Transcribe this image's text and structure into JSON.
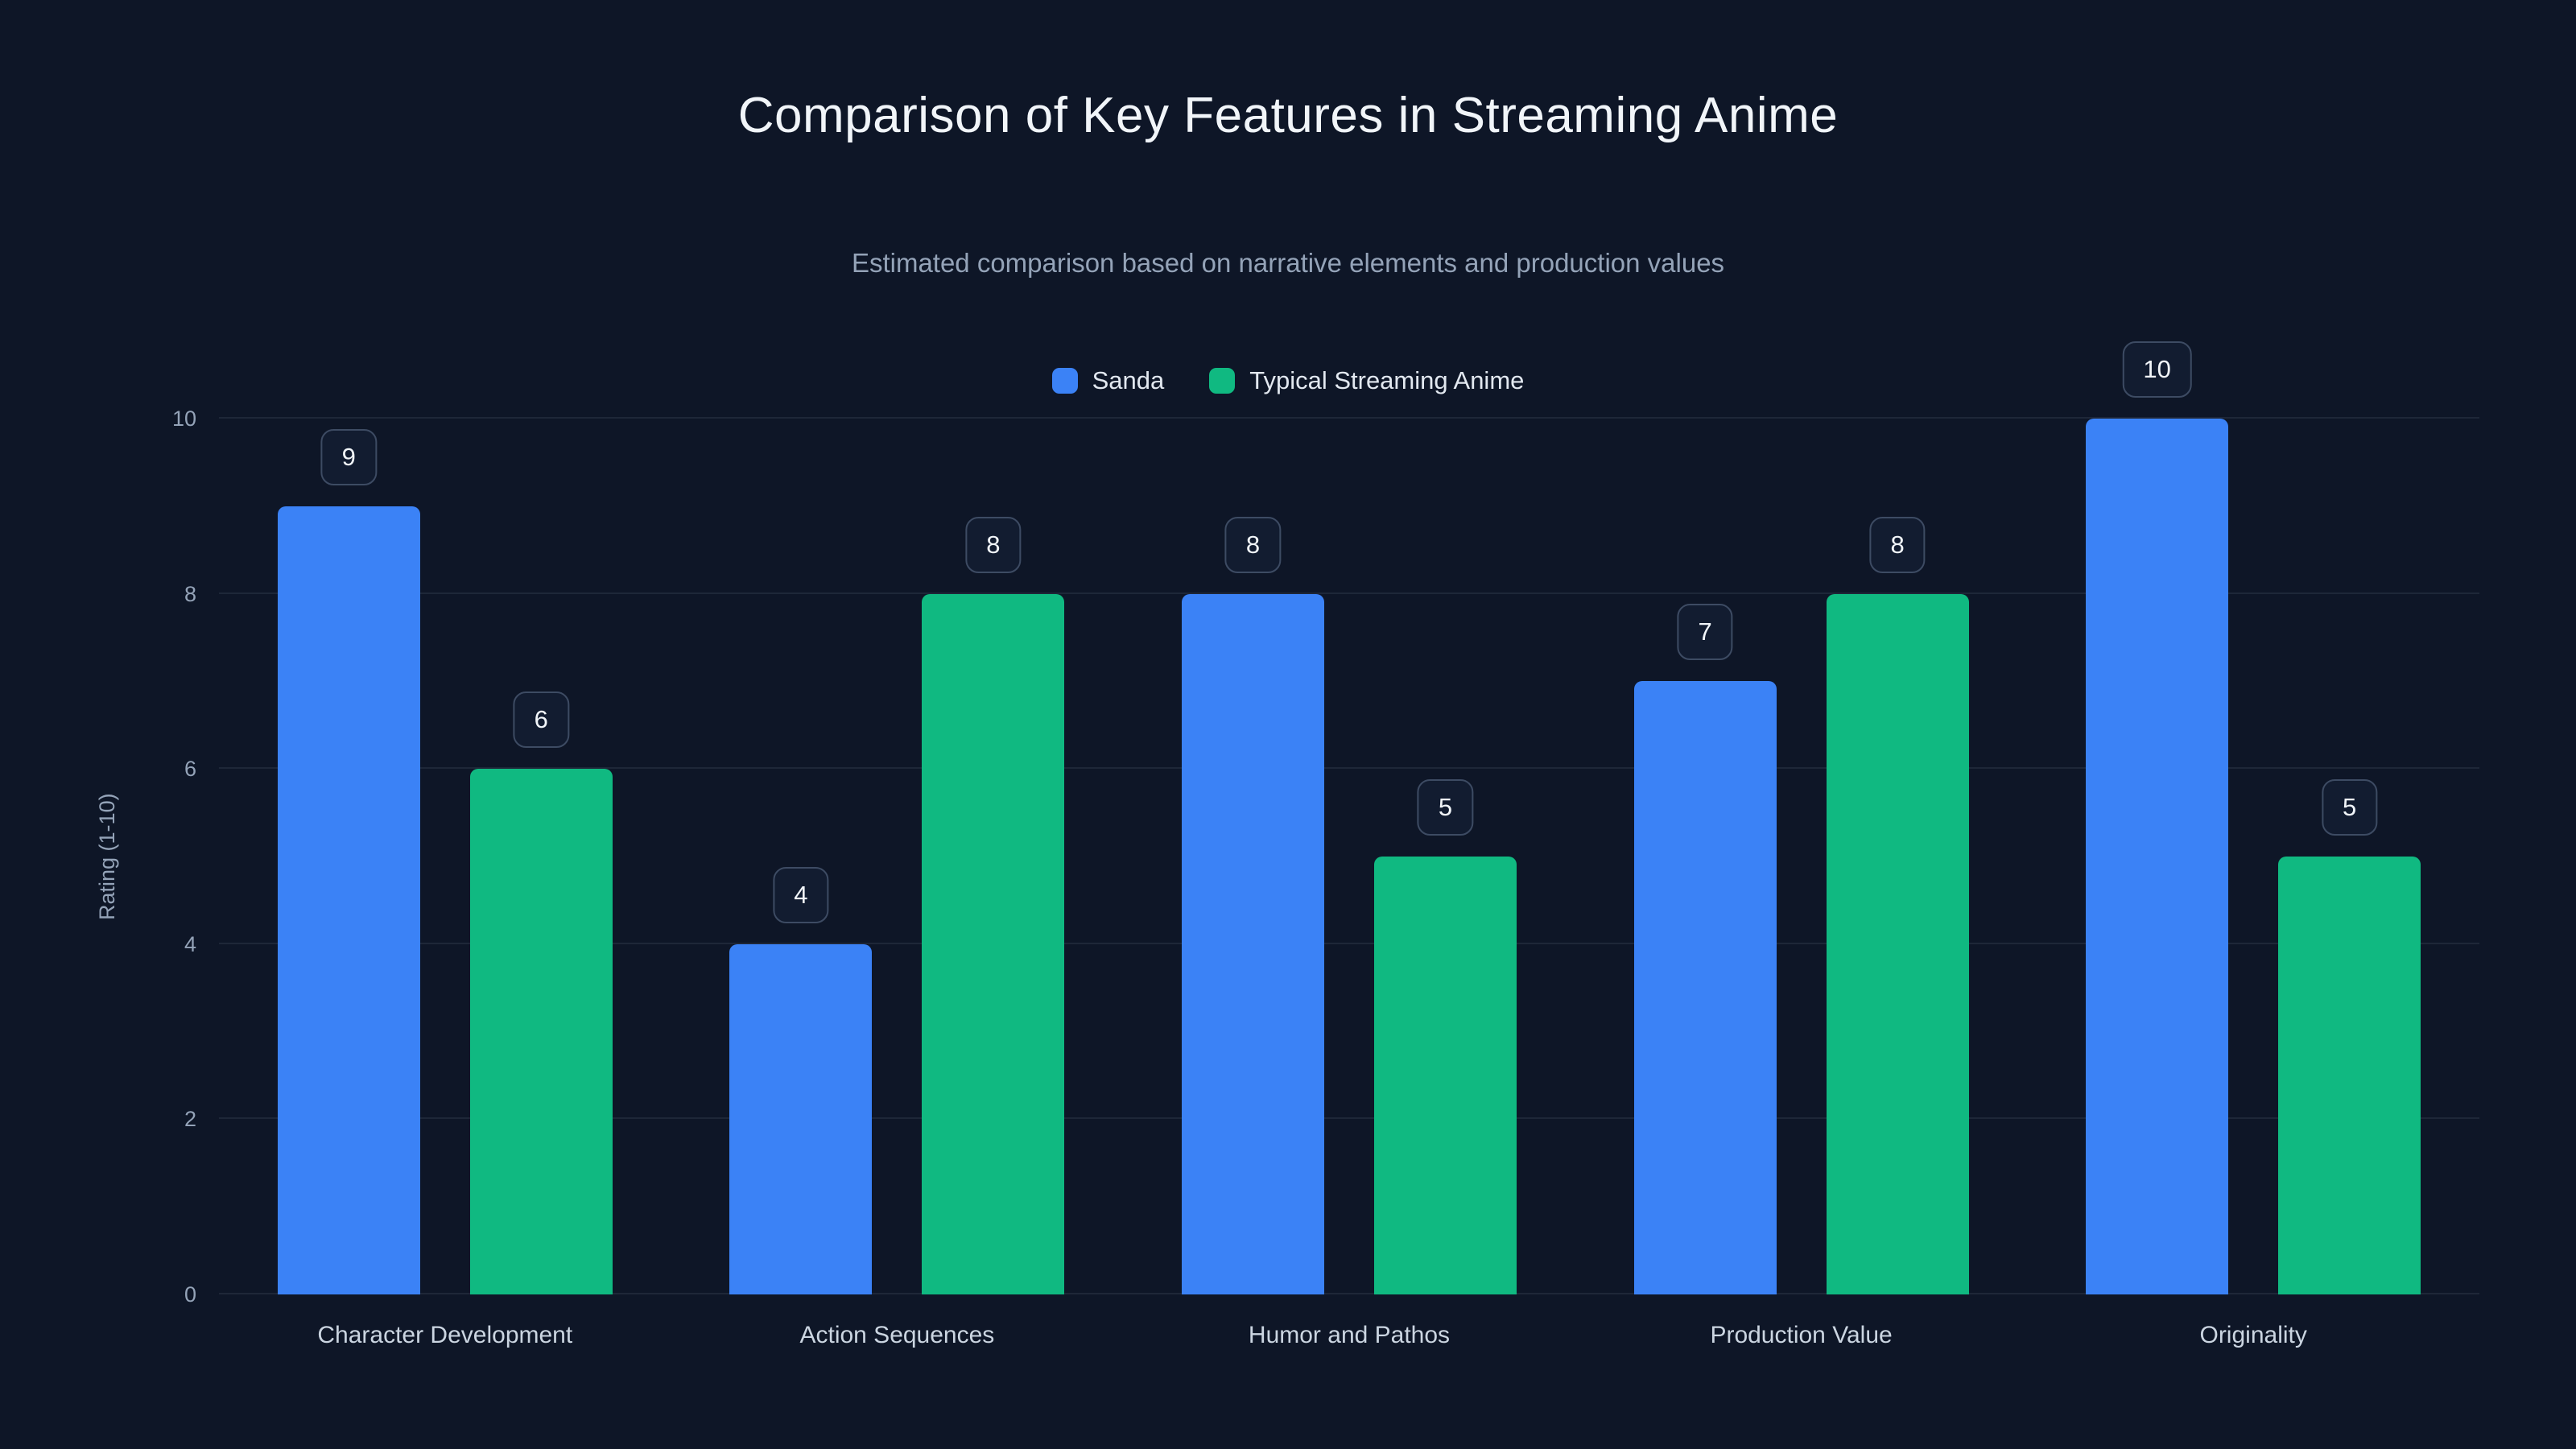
{
  "page": {
    "background": "#0e1627"
  },
  "header": {
    "title": "Comparison of Key Features in Streaming Anime",
    "subtitle": "Estimated comparison based on narrative elements and production values"
  },
  "chart_data": {
    "type": "bar",
    "title": "Comparison of Key Features in Streaming Anime",
    "subtitle": "Estimated comparison based on narrative elements and production values",
    "ylabel": "Rating (1-10)",
    "xlabel": "",
    "ylim": [
      0,
      10
    ],
    "yticks": [
      0,
      2,
      4,
      6,
      8,
      10
    ],
    "grid": true,
    "legend_position": "top",
    "categories": [
      "Character Development",
      "Action Sequences",
      "Humor and Pathos",
      "Production Value",
      "Originality"
    ],
    "series": [
      {
        "name": "Sanda",
        "color": "#3b82f6",
        "values": [
          9,
          4,
          8,
          7,
          10
        ]
      },
      {
        "name": "Typical Streaming Anime",
        "color": "#10b981",
        "values": [
          6,
          8,
          5,
          8,
          5
        ]
      }
    ],
    "value_labels": true
  }
}
